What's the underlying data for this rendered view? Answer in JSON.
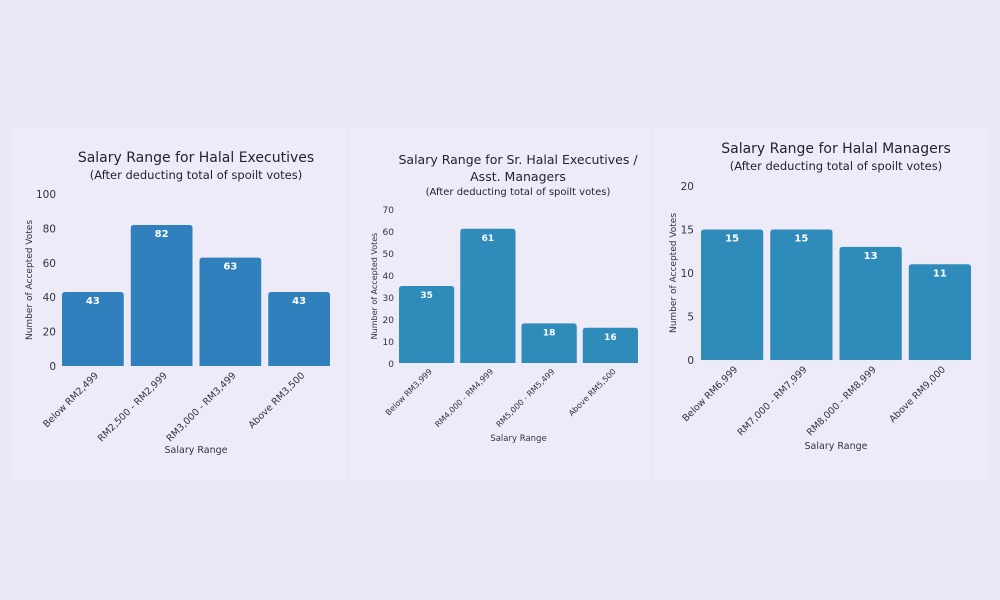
{
  "colors": {
    "background": "#ebe8f6",
    "panel": "#eeebf8",
    "bar_chart1": "#2f80bd",
    "bar_chart2": "#2f8bba",
    "bar_chart3": "#2f8bba",
    "bar_label": "#ffffff"
  },
  "chart_data": [
    {
      "type": "bar",
      "title": "Salary Range for Halal Executives",
      "subtitle": "(After deducting total of spoilt votes)",
      "xlabel": "Salary Range",
      "ylabel": "Number of Accepted Votes",
      "categories": [
        "Below RM2,499",
        "RM2,500 - RM2,999",
        "RM3,000 - RM3,499",
        "Above RM3,500"
      ],
      "values": [
        43,
        82,
        63,
        43
      ],
      "ylim": [
        0,
        100
      ],
      "yticks": [
        0,
        20,
        40,
        60,
        80,
        100
      ],
      "grid": false,
      "legend": "none"
    },
    {
      "type": "bar",
      "title": "Salary Range for Sr. Halal Executives / Asst. Managers",
      "title_lines": [
        "Salary Range for Sr. Halal Executives /",
        "Asst. Managers"
      ],
      "subtitle": "(After deducting total of spoilt votes)",
      "xlabel": "Salary Range",
      "ylabel": "Number of Accepted Votes",
      "categories": [
        "Below RM3,999",
        "RM4,000 - RM4,999",
        "RM5,000 - RM5,499",
        "Above RM5,500"
      ],
      "values": [
        35,
        61,
        18,
        16
      ],
      "ylim": [
        0,
        70
      ],
      "yticks": [
        0,
        10,
        20,
        30,
        40,
        50,
        60,
        70
      ],
      "grid": false,
      "legend": "none"
    },
    {
      "type": "bar",
      "title": "Salary Range for Halal Managers",
      "subtitle": "(After deducting total of spoilt votes)",
      "xlabel": "Salary Range",
      "ylabel": "Number of Accepted Votes",
      "categories": [
        "Below RM6,999",
        "RM7,000 - RM7,999",
        "RM8,000 - RM8,999",
        "Above RM9,000"
      ],
      "values": [
        15,
        15,
        13,
        11
      ],
      "ylim": [
        0,
        20
      ],
      "yticks": [
        0,
        5,
        10,
        15,
        20
      ],
      "grid": false,
      "legend": "none"
    }
  ]
}
